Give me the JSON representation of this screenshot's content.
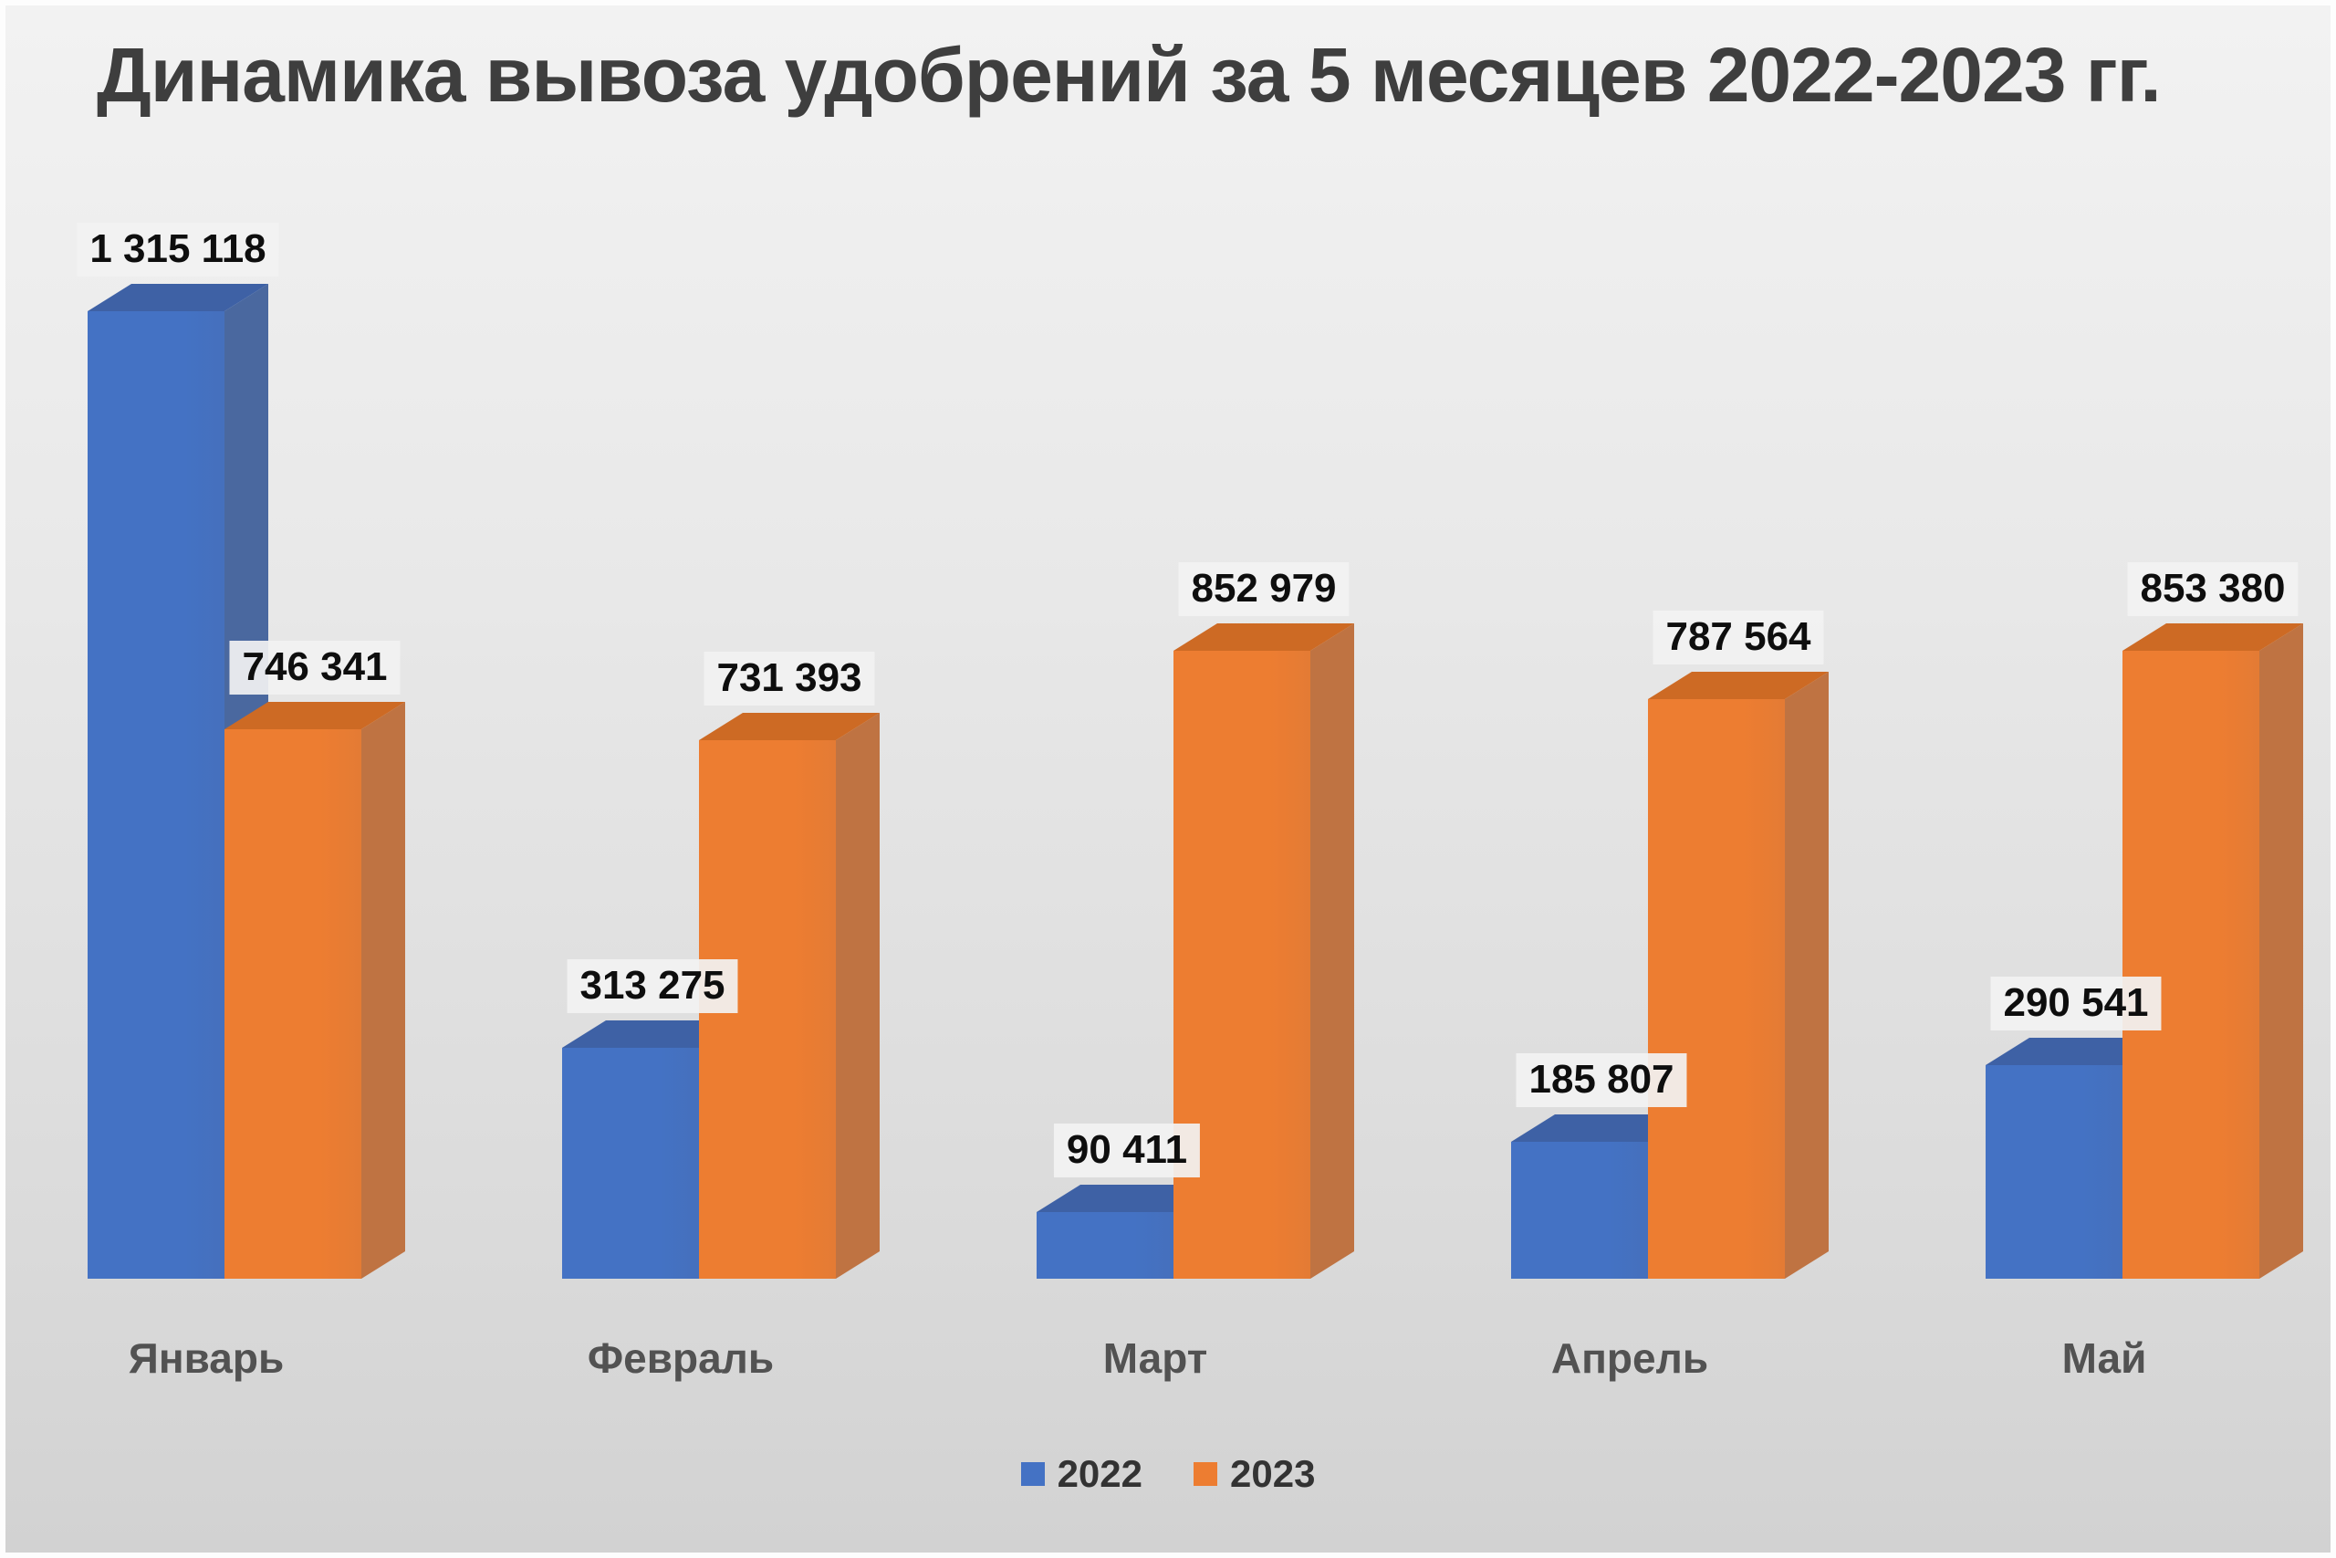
{
  "chart_data": {
    "type": "bar",
    "projection": "3d",
    "title": "Динамика вывоза удобрений за 5 месяцев 2022-2023 гг.",
    "categories": [
      "Январь",
      "Февраль",
      "Март",
      "Апрель",
      "Май"
    ],
    "series": [
      {
        "name": "2022",
        "color": "#4472c4",
        "side_color": "#4a689f",
        "top_color": "#3e61a5",
        "values": [
          1315118,
          313275,
          90411,
          185807,
          290541
        ],
        "labels": [
          "1 315 118",
          "313 275",
          "90 411",
          "185 807",
          "290 541"
        ]
      },
      {
        "name": "2023",
        "color": "#ed7d31",
        "side_color": "#bf7342",
        "top_color": "#cd6a24",
        "values": [
          746341,
          731393,
          852979,
          787564,
          853380
        ],
        "labels": [
          "746 341",
          "731 393",
          "852 979",
          "787 564",
          "853 380"
        ]
      }
    ],
    "ylim": [
      0,
      1315118
    ],
    "grid": false,
    "axes_visible": false,
    "legend_position": "bottom-center",
    "value_label_format": "space-thousands"
  }
}
